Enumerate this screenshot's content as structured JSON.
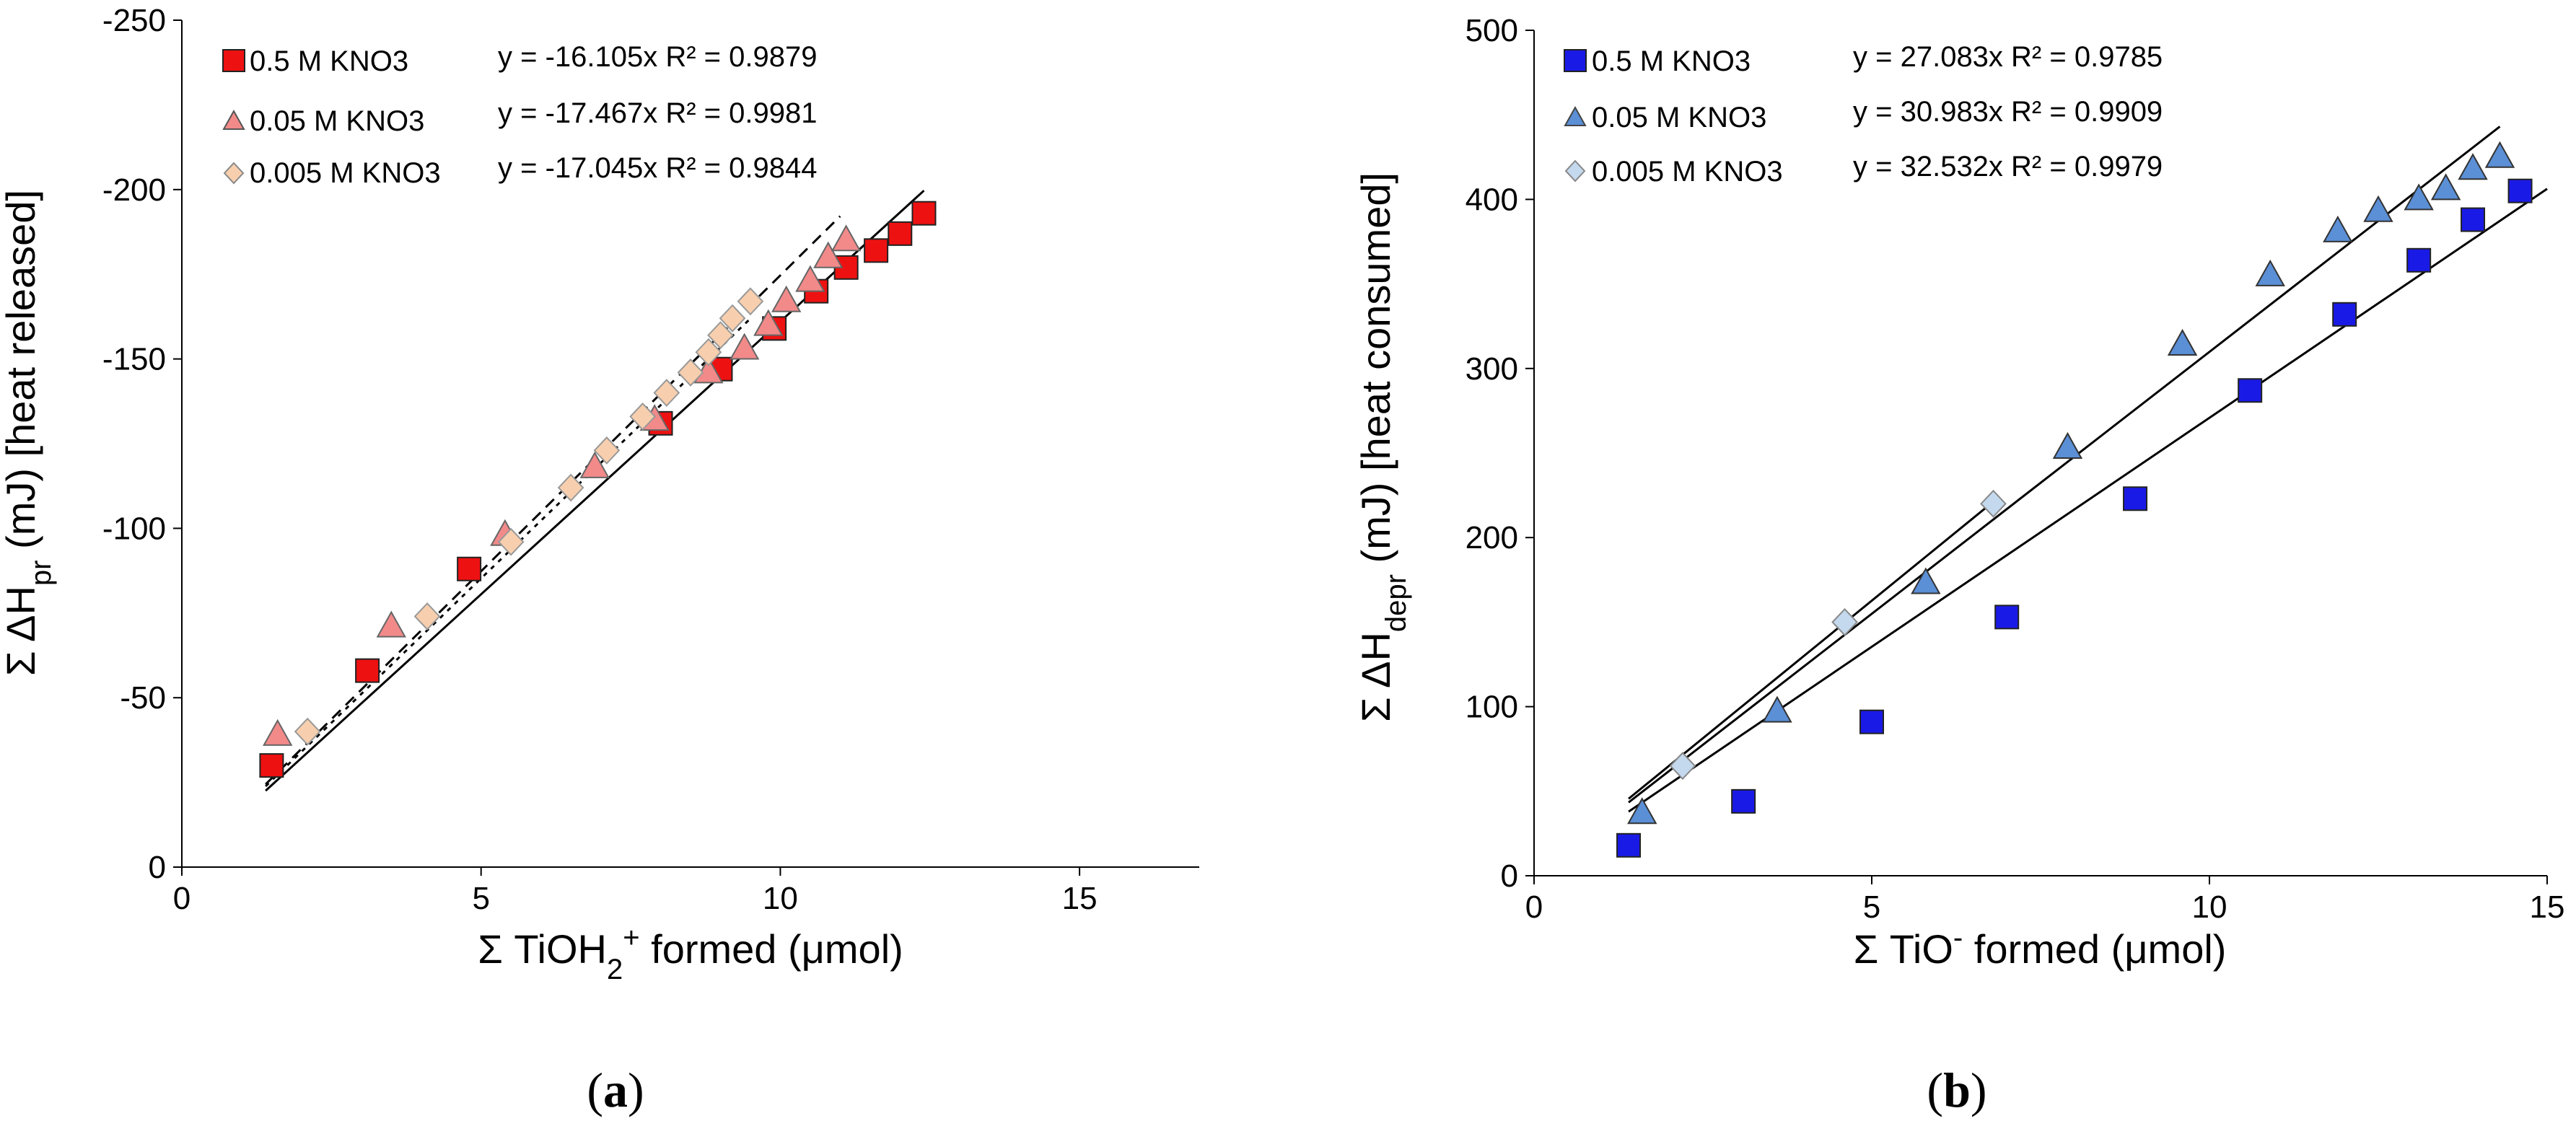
{
  "panels": [
    {
      "id": "a",
      "caption": "a",
      "ylabel": {
        "prefix": "Σ ΔH",
        "sub": "pr",
        "suffix": " (mJ)  [heat released]"
      },
      "xlabel": {
        "prefix": "Σ TiOH",
        "sub": "2",
        "sup": "+",
        "suffix": " formed (μmol)"
      },
      "xticks": [
        "0",
        "5",
        "10",
        "15"
      ],
      "yticks": [
        "0",
        "-50",
        "-100",
        "-150",
        "-200",
        "-250"
      ],
      "legend": [
        {
          "label": "0.5 M KNO3",
          "eq": "y = -16.105x  R² = 0.9879"
        },
        {
          "label": "0.05 M KNO3",
          "eq": "y = -17.467x  R² = 0.9981"
        },
        {
          "label": "0.005 M KNO3",
          "eq": "y = -17.045x  R² = 0.9844"
        }
      ]
    },
    {
      "id": "b",
      "caption": "b",
      "ylabel": {
        "prefix": "Σ ΔH",
        "sub": "depr",
        "suffix": " (mJ)  [heat consumed]"
      },
      "xlabel": {
        "prefix": "Σ TiO",
        "sup": "-",
        "suffix": " formed (μmol)"
      },
      "xticks": [
        "0",
        "5",
        "10",
        "15"
      ],
      "yticks": [
        "0",
        "100",
        "200",
        "300",
        "400",
        "500"
      ],
      "legend": [
        {
          "label": "0.5 M KNO3",
          "eq": "y = 27.083x  R² = 0.9785"
        },
        {
          "label": "0.05 M KNO3",
          "eq": "y = 30.983x  R² = 0.9909"
        },
        {
          "label": "0.005 M KNO3",
          "eq": "y = 32.532x  R² = 0.9979"
        }
      ]
    }
  ],
  "chart_data": [
    {
      "type": "scatter",
      "title": "(a)",
      "xlabel": "Σ TiOH2+ formed (μmol)",
      "ylabel": "Σ ΔHpr (mJ) [heat released]",
      "xlim": [
        0,
        17
      ],
      "ylim": [
        0,
        -250
      ],
      "y_axis_inverted": true,
      "series": [
        {
          "name": "0.5 M KNO3",
          "marker": "square",
          "color": "#ee1111",
          "fit": {
            "slope": -16.105,
            "r2": 0.9879,
            "style": "solid",
            "x_range": [
              1.4,
              12.4
            ]
          },
          "x": [
            1.5,
            3.1,
            4.8,
            8.0,
            9.0,
            9.9,
            10.6,
            11.1,
            11.6,
            12.0,
            12.4
          ],
          "y": [
            -30,
            -58,
            -88,
            -131,
            -147,
            -159,
            -170,
            -177,
            -182,
            -187,
            -193
          ]
        },
        {
          "name": "0.05 M KNO3",
          "marker": "triangle",
          "color": "#f28a8a",
          "fit": {
            "slope": -17.467,
            "r2": 0.9981,
            "style": "dashed",
            "x_range": [
              1.4,
              11.0
            ]
          },
          "x": [
            1.6,
            3.5,
            5.4,
            6.9,
            7.9,
            8.8,
            9.4,
            9.8,
            10.1,
            10.5,
            10.8,
            11.1
          ],
          "y": [
            -39,
            -71,
            -98,
            -118,
            -132,
            -146,
            -153,
            -160,
            -167,
            -173,
            -180,
            -185
          ]
        },
        {
          "name": "0.005 M KNO3",
          "marker": "diamond",
          "color": "#f8cfae",
          "fit": {
            "slope": -17.045,
            "r2": 0.9844,
            "style": "dashed",
            "x_range": [
              1.4,
              9.5
            ]
          },
          "x": [
            2.1,
            4.1,
            5.5,
            6.5,
            7.1,
            7.7,
            8.1,
            8.5,
            8.8,
            9.0,
            9.2,
            9.5
          ],
          "y": [
            -40,
            -74,
            -96,
            -112,
            -123,
            -133,
            -140,
            -146,
            -152,
            -157,
            -162,
            -167
          ]
        }
      ]
    },
    {
      "type": "scatter",
      "title": "(b)",
      "xlabel": "Σ TiO- formed (μmol)",
      "ylabel": "Σ ΔHdepr (mJ) [heat consumed]",
      "xlim": [
        0,
        15
      ],
      "ylim": [
        0,
        500
      ],
      "series": [
        {
          "name": "0.5 M KNO3",
          "marker": "square",
          "color": "#1a1ae6",
          "fit": {
            "slope": 27.083,
            "r2": 0.9785,
            "style": "solid",
            "x_range": [
              1.4,
              15.0
            ]
          },
          "x": [
            1.4,
            3.1,
            5.0,
            7.0,
            8.9,
            10.6,
            12.0,
            13.1,
            13.9,
            14.6
          ],
          "y": [
            18,
            44,
            91,
            153,
            223,
            287,
            332,
            364,
            388,
            405
          ]
        },
        {
          "name": "0.05 M KNO3",
          "marker": "triangle",
          "color": "#5b8fd6",
          "fit": {
            "slope": 30.983,
            "r2": 0.9909,
            "style": "solid",
            "x_range": [
              1.4,
              14.3
            ]
          },
          "x": [
            1.6,
            3.6,
            5.8,
            7.9,
            9.6,
            10.9,
            11.9,
            12.5,
            13.1,
            13.5,
            13.9,
            14.3
          ],
          "y": [
            37,
            97,
            173,
            253,
            314,
            355,
            381,
            393,
            400,
            406,
            418,
            425
          ]
        },
        {
          "name": "0.005 M KNO3",
          "marker": "diamond",
          "color": "#c4d8ee",
          "fit": {
            "slope": 32.532,
            "r2": 0.9979,
            "style": "solid",
            "x_range": [
              1.4,
              6.8
            ]
          },
          "x": [
            2.2,
            4.6,
            6.8
          ],
          "y": [
            65,
            150,
            220
          ]
        }
      ]
    }
  ]
}
